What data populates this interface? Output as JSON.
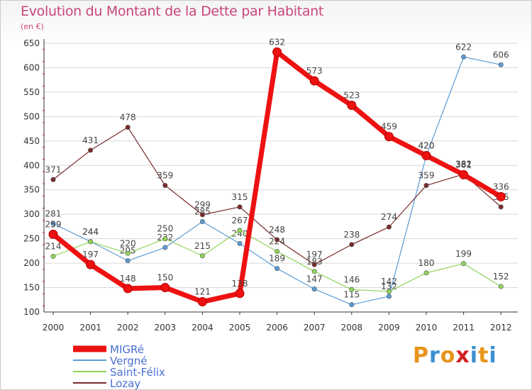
{
  "title": "Evolution du Montant de la Dette par Habitant",
  "subtitle": "(en €)",
  "logo": {
    "text": "Proxiti",
    "colors": [
      "#e8941a",
      "#3a8fd0",
      "#e8941a",
      "#d02020",
      "#3a8fd0",
      "#e8941a",
      "#3a8fd0"
    ]
  },
  "colors": {
    "title": "#c8457a",
    "legend_text": "#4a6fd0",
    "axis_text": "#333333",
    "grid": "#d8d8d8"
  },
  "chart_data": {
    "type": "line",
    "title": "Evolution du Montant de la Dette par Habitant",
    "subtitle": "(en €)",
    "x": [
      "2000",
      "2001",
      "2002",
      "2003",
      "2004",
      "2005",
      "2006",
      "2007",
      "2008",
      "2009",
      "2010",
      "2011",
      "2012"
    ],
    "ylim": [
      100,
      650
    ],
    "yticks": [
      100,
      150,
      200,
      250,
      300,
      350,
      400,
      450,
      500,
      550,
      600,
      650
    ],
    "grid": "horizontal",
    "legend_position": "bottom-left",
    "series": [
      {
        "name": "Vergné",
        "color": "#5b9bd5",
        "values": [
          281,
          244,
          205,
          232,
          285,
          240,
          189,
          147,
          115,
          132,
          420,
          622,
          606
        ],
        "labels": [
          "281",
          "244",
          "205",
          "232",
          "285",
          "240",
          "189",
          "147",
          "115",
          "132",
          "420",
          "622",
          "606"
        ]
      },
      {
        "name": "Saint-Félix",
        "color": "#8fd45a",
        "values": [
          214,
          244,
          220,
          250,
          215,
          267,
          224,
          183,
          146,
          142,
          180,
          199,
          152
        ],
        "labels": [
          "214",
          "244",
          "220",
          "250",
          "215",
          "267",
          "224",
          "183",
          "146",
          "142",
          "180",
          "199",
          "152"
        ]
      },
      {
        "name": "Lozay",
        "color": "#7a2a2a",
        "values": [
          371,
          431,
          478,
          359,
          299,
          315,
          248,
          197,
          238,
          274,
          359,
          382,
          315
        ],
        "labels": [
          "371",
          "431",
          "478",
          "359",
          "299",
          "315",
          "248",
          "197",
          "238",
          "274",
          "359",
          "382",
          "315"
        ]
      },
      {
        "name": "MIGRé",
        "color": "#ee1111",
        "values": [
          259,
          197,
          148,
          150,
          121,
          138,
          632,
          573,
          523,
          459,
          420,
          381,
          336
        ],
        "labels": [
          "259",
          "197",
          "148",
          "150",
          "121",
          "138",
          "632",
          "573",
          "523",
          "459",
          "420",
          "381",
          "336"
        ]
      }
    ],
    "legend": [
      "MIGRé",
      "Vergné",
      "Saint-Félix",
      "Lozay"
    ]
  }
}
